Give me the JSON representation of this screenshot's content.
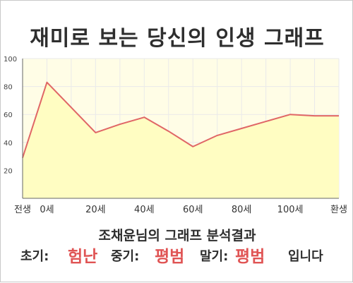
{
  "title": "재미로 보는 당신의 인생 그래프",
  "chart_data": {
    "type": "area",
    "x": [
      -10,
      0,
      20,
      30,
      40,
      50,
      60,
      70,
      80,
      90,
      100,
      110,
      120
    ],
    "y": [
      29,
      83,
      47,
      53,
      58,
      48,
      37,
      45,
      50,
      55,
      60,
      59,
      59
    ],
    "xlim": [
      -10,
      120
    ],
    "ylim": [
      0,
      100
    ],
    "yticks": [
      20,
      40,
      60,
      80,
      100
    ],
    "xticks": [
      {
        "value": -10,
        "label": "전생"
      },
      {
        "value": 0,
        "label": "0세"
      },
      {
        "value": 20,
        "label": "20세"
      },
      {
        "value": 40,
        "label": "40세"
      },
      {
        "value": 60,
        "label": "60세"
      },
      {
        "value": 80,
        "label": "80세"
      },
      {
        "value": 100,
        "label": "100세"
      },
      {
        "value": 120,
        "label": "환생"
      }
    ],
    "grid": true,
    "colors": {
      "fill": "#fffdc2",
      "line": "#e06666",
      "plot_bg": "#fffde6",
      "grid": "#eaeaea"
    }
  },
  "result": {
    "heading": "조채윤님의 그래프 분석결과",
    "early_label": "초기:",
    "early_value": "험난",
    "mid_label": "중기:",
    "mid_value": "평범",
    "late_label": "말기:",
    "late_value": "평범",
    "ending": "입니다"
  }
}
